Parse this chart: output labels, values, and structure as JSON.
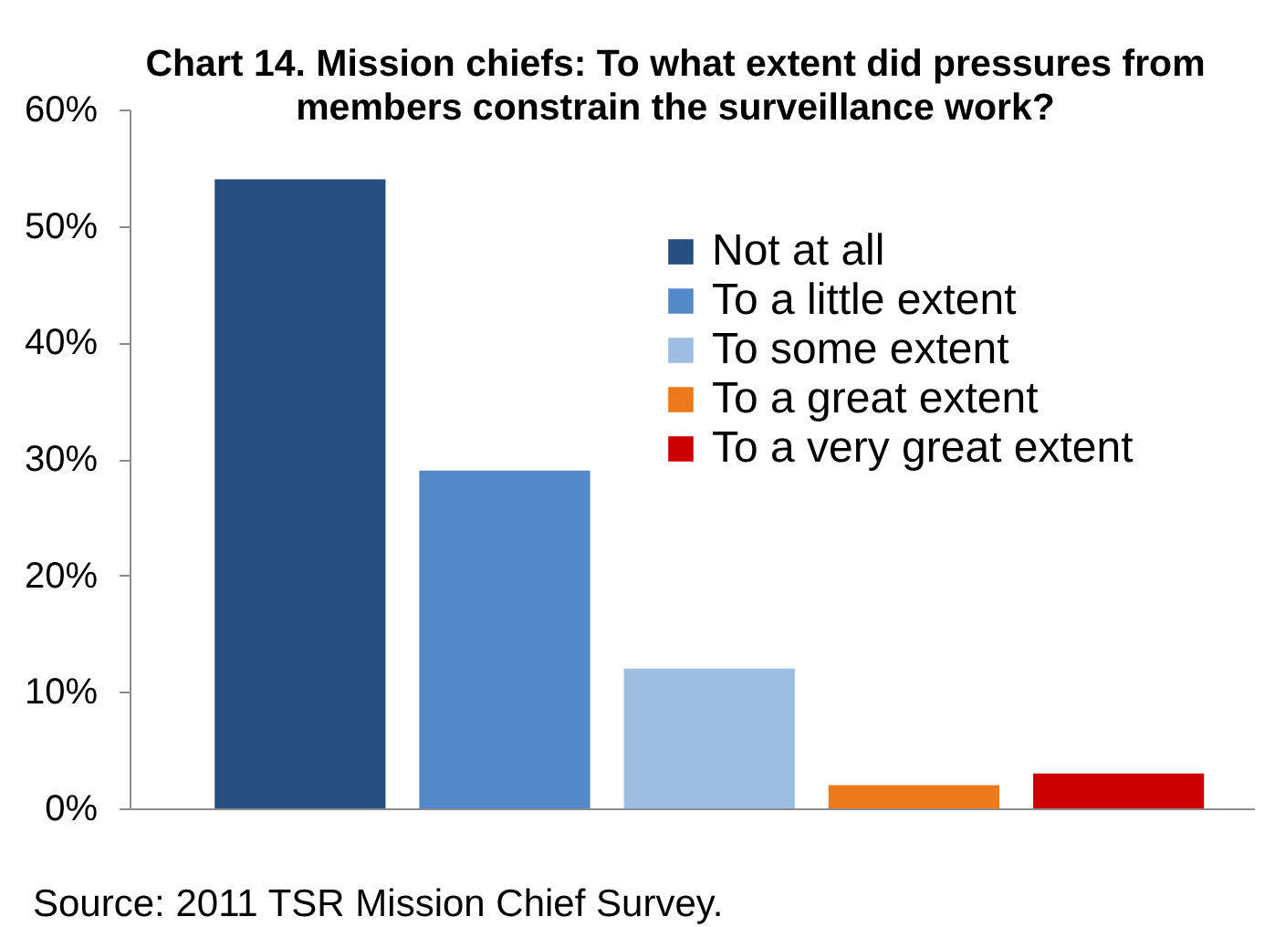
{
  "chart_data": {
    "type": "bar",
    "title": "Chart 14. Mission chiefs: To what extent did pressures from members constrain the surveillance work?",
    "categories": [
      null,
      null,
      null,
      null,
      null
    ],
    "series": [
      {
        "name": "Not at all",
        "color": "#264f80",
        "values": [
          54,
          null,
          null,
          null,
          null
        ]
      },
      {
        "name": "To a little extent",
        "color": "#5588c8",
        "values": [
          null,
          29,
          null,
          null,
          null
        ]
      },
      {
        "name": "To some extent",
        "color": "#9dbde2",
        "values": [
          null,
          null,
          12,
          null,
          null
        ]
      },
      {
        "name": "To a great extent",
        "color": "#ec7a1c",
        "values": [
          null,
          null,
          null,
          2,
          null
        ]
      },
      {
        "name": "To a very great extent",
        "color": "#cc0000",
        "values": [
          null,
          null,
          null,
          null,
          3
        ]
      }
    ],
    "ylim": [
      0,
      60
    ],
    "yticks": [
      {
        "value": 0,
        "label": "0%"
      },
      {
        "value": 10,
        "label": "10%"
      },
      {
        "value": 20,
        "label": "20%"
      },
      {
        "value": 30,
        "label": "30%"
      },
      {
        "value": 40,
        "label": "40%"
      },
      {
        "value": 50,
        "label": "50%"
      },
      {
        "value": 60,
        "label": "60%"
      }
    ],
    "legend": "top right",
    "tick_labels": "y",
    "annotations": [
      "Source: 2011 TSR Mission Chief Survey."
    ]
  }
}
